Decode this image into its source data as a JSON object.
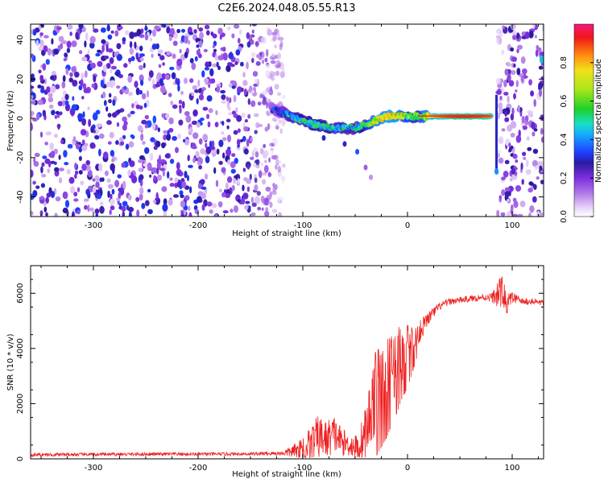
{
  "title": "C2E6.2024.048.05.55.R13",
  "colors": {
    "snr_line": "#ee2222",
    "colormap": [
      "#ffffff",
      "#e6cff7",
      "#b07ae6",
      "#7d2fe0",
      "#2a1aa0",
      "#1f3cff",
      "#16a3ff",
      "#18e0c8",
      "#1fd02a",
      "#a8e61b",
      "#f2e11a",
      "#ff8a10",
      "#f01818",
      "#f21b7a"
    ]
  },
  "chart_data": [
    {
      "type": "heatmap",
      "xlabel": "Height of straight line (km)",
      "ylabel": "Frequency (Hz)",
      "xlim": [
        -360,
        130
      ],
      "ylim": [
        -50,
        48
      ],
      "xticks": [
        -300,
        -200,
        -100,
        0,
        100
      ],
      "xtick_labels": [
        "-300",
        "-200",
        "-100",
        "0",
        "100"
      ],
      "yticks": [
        -40,
        -20,
        0,
        20,
        40
      ],
      "ytick_labels": [
        "-40",
        "-20",
        "0",
        "20",
        "40"
      ],
      "colorbar": {
        "label": "Normalized spectral amplitude",
        "range": [
          0,
          1
        ],
        "ticks": [
          0.0,
          0.2,
          0.4,
          0.6,
          0.8
        ],
        "tick_labels": [
          "0.0",
          "0.2",
          "0.4",
          "0.6",
          "0.8"
        ]
      },
      "noise_regions": [
        {
          "x_range": [
            -360,
            -118
          ],
          "level": 0.3
        },
        {
          "x_range": [
            86,
            130
          ],
          "level": 0.25
        }
      ],
      "signal_track": [
        {
          "x": -130,
          "freq": 5,
          "amp": 0.25
        },
        {
          "x": -120,
          "freq": 3,
          "amp": 0.35
        },
        {
          "x": -110,
          "freq": 1,
          "amp": 0.45
        },
        {
          "x": -100,
          "freq": -1,
          "amp": 0.5
        },
        {
          "x": -90,
          "freq": -3,
          "amp": 0.5
        },
        {
          "x": -80,
          "freq": -4,
          "amp": 0.5
        },
        {
          "x": -70,
          "freq": -5,
          "amp": 0.45
        },
        {
          "x": -60,
          "freq": -5,
          "amp": 0.45
        },
        {
          "x": -50,
          "freq": -5,
          "amp": 0.45
        },
        {
          "x": -40,
          "freq": -3,
          "amp": 0.55
        },
        {
          "x": -30,
          "freq": -1,
          "amp": 0.7
        },
        {
          "x": -20,
          "freq": 1,
          "amp": 0.75
        },
        {
          "x": -10,
          "freq": 1,
          "amp": 0.75
        },
        {
          "x": 0,
          "freq": 1,
          "amp": 0.6
        },
        {
          "x": 10,
          "freq": 1,
          "amp": 0.55
        },
        {
          "x": 20,
          "freq": 1,
          "amp": 0.75
        },
        {
          "x": 30,
          "freq": 1,
          "amp": 0.85
        },
        {
          "x": 40,
          "freq": 1,
          "amp": 0.9
        },
        {
          "x": 50,
          "freq": 1,
          "amp": 0.92
        },
        {
          "x": 60,
          "freq": 1,
          "amp": 0.92
        },
        {
          "x": 70,
          "freq": 1,
          "amp": 0.9
        },
        {
          "x": 80,
          "freq": 1,
          "amp": 0.85
        }
      ],
      "secondary_track": [
        {
          "x": -80,
          "freq": -10,
          "amp": 0.3
        },
        {
          "x": -60,
          "freq": -13,
          "amp": 0.3
        },
        {
          "x": -48,
          "freq": -17,
          "amp": 0.35
        },
        {
          "x": -40,
          "freq": -25,
          "amp": 0.15
        },
        {
          "x": -35,
          "freq": -30,
          "amp": 0.1
        }
      ]
    },
    {
      "type": "line",
      "xlabel": "Height of straight line (km)",
      "ylabel": "SNR (10 * v/v)",
      "xlim": [
        -360,
        130
      ],
      "ylim": [
        0,
        7000
      ],
      "xticks": [
        -300,
        -200,
        -100,
        0,
        100
      ],
      "xtick_labels": [
        "-300",
        "-200",
        "-100",
        "0",
        "100"
      ],
      "yticks": [
        0,
        2000,
        4000,
        6000
      ],
      "ytick_labels": [
        "0",
        "2000",
        "4000",
        "6000"
      ],
      "series": [
        {
          "x": [
            -360,
            -300,
            -250,
            -200,
            -150,
            -120,
            -105,
            -95,
            -85,
            -78,
            -70,
            -62,
            -55,
            -48,
            -42,
            -38,
            -35,
            -30,
            -25,
            -20,
            -15,
            -10,
            -5,
            0,
            5,
            10,
            15,
            20,
            25,
            30,
            40,
            50,
            60,
            70,
            80,
            85,
            90,
            95,
            100,
            110,
            120,
            130
          ],
          "y": [
            150,
            160,
            170,
            170,
            180,
            200,
            300,
            500,
            800,
            700,
            900,
            600,
            500,
            400,
            700,
            1200,
            1800,
            2500,
            2800,
            3000,
            3300,
            3600,
            3800,
            4000,
            4300,
            4600,
            4800,
            5100,
            5300,
            5500,
            5700,
            5750,
            5800,
            5850,
            5850,
            5900,
            6100,
            5600,
            5850,
            5700,
            5700,
            5650
          ],
          "amplitude": [
            60,
            60,
            60,
            60,
            60,
            80,
            300,
            600,
            800,
            700,
            700,
            500,
            400,
            500,
            900,
            1200,
            1400,
            1500,
            1500,
            1400,
            1300,
            1200,
            1000,
            900,
            700,
            500,
            350,
            250,
            200,
            150,
            120,
            120,
            120,
            120,
            150,
            400,
            600,
            400,
            200,
            120,
            120,
            120
          ]
        }
      ]
    }
  ]
}
